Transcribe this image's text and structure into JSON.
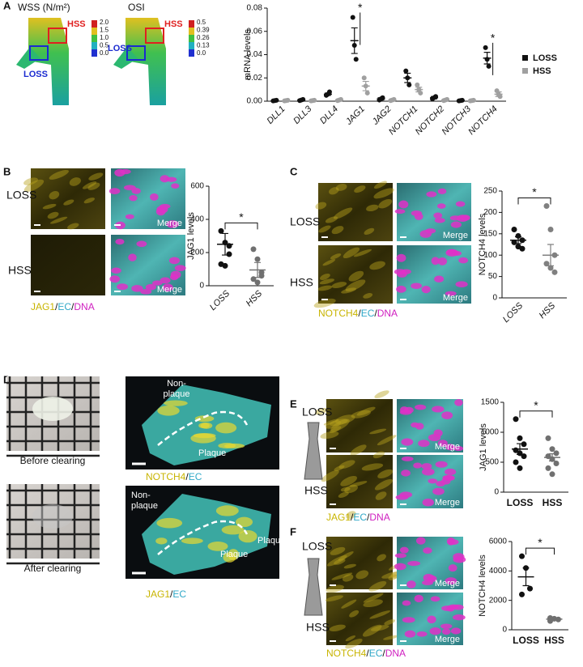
{
  "panels": {
    "a": {
      "letter": "A",
      "wss_title": "WSS (N/m²)",
      "osi_title": "OSI",
      "wss_scale": [
        "2.0",
        "1.5",
        "1.0",
        "0.5",
        "0.0"
      ],
      "osi_scale": [
        "0.5",
        "0.39",
        "0.26",
        "0.13",
        "0.0"
      ],
      "wss_labels": [
        "HSS",
        "LOSS"
      ],
      "osi_labels": [
        "HSS",
        "LOSS"
      ]
    },
    "b": {
      "letter": "B",
      "rows": [
        "LOSS",
        "HSS"
      ],
      "merge": [
        "Merge",
        "Merge"
      ],
      "stain": [
        "JAG1",
        "/",
        "EC",
        "/",
        "DNA"
      ]
    },
    "c": {
      "letter": "C",
      "rows": [
        "LOSS",
        "HSS"
      ],
      "merge": [
        "Merge",
        "Merge"
      ],
      "stain": [
        "NOTCH4",
        "/",
        "EC",
        "/",
        "DNA"
      ]
    },
    "d": {
      "letter": "D",
      "captions": [
        "Before clearing",
        "After clearing"
      ],
      "top_labels": [
        "Non-",
        "plaque",
        "Plaque"
      ],
      "top_stain": [
        "NOTCH4",
        "/",
        "EC"
      ],
      "bottom_labels": [
        "Non-",
        "plaque",
        "Plaqu",
        "Plaque"
      ],
      "bottom_stain": [
        "JAG1",
        "/",
        "EC"
      ]
    },
    "e": {
      "letter": "E",
      "rows": [
        "LOSS",
        "HSS"
      ],
      "merge": [
        "Merge",
        "Merge"
      ],
      "stain": [
        "JAG1",
        "/",
        "EC",
        "/",
        "DNA"
      ]
    },
    "f": {
      "letter": "F",
      "rows": [
        "LOSS",
        "HSS"
      ],
      "merge": [
        "Merge",
        "Merge"
      ],
      "stain": [
        "NOTCH4",
        "/",
        "EC",
        "/",
        "DNA"
      ]
    }
  },
  "chart_data": [
    {
      "type": "dot",
      "ylabel": "mRNA levels",
      "categories": [
        "DLL1",
        "DLL3",
        "DLL4",
        "JAG1",
        "JAG2",
        "NOTCH1",
        "NOTCH2",
        "NOTCH3",
        "NOTCH4"
      ],
      "ylim": [
        0,
        0.08
      ],
      "yticks": [
        {
          "value": 0,
          "label": "0.00"
        },
        {
          "value": 0.02,
          "label": "0.02"
        },
        {
          "value": 0.04,
          "label": "0.04"
        },
        {
          "value": 0.06,
          "label": "0.06"
        },
        {
          "value": 0.08,
          "label": "0.08"
        }
      ],
      "series": [
        {
          "name": "LOSS",
          "color": "#111111",
          "values": [
            0.0005,
            0.001,
            0.006,
            0.052,
            0.002,
            0.02,
            0.003,
            0.0005,
            0.037
          ],
          "errors": [
            0.0003,
            0.0005,
            0.001,
            0.011,
            0.001,
            0.004,
            0.001,
            0.0003,
            0.005
          ],
          "points": [
            [
              0.0003,
              0.0005,
              0.0008
            ],
            [
              0.0005,
              0.001,
              0.0015
            ],
            [
              0.005,
              0.006,
              0.008
            ],
            [
              0.072,
              0.048,
              0.036
            ],
            [
              0.001,
              0.002,
              0.003
            ],
            [
              0.026,
              0.02,
              0.014
            ],
            [
              0.002,
              0.003,
              0.004
            ],
            [
              0.0003,
              0.0005,
              0.0008
            ],
            [
              0.046,
              0.036,
              0.03
            ]
          ]
        },
        {
          "name": "HSS",
          "color": "#a0a0a0",
          "values": [
            0.0005,
            0.0005,
            0.001,
            0.013,
            0.001,
            0.01,
            0.001,
            0.0005,
            0.006
          ],
          "errors": [
            0.0003,
            0.0003,
            0.0005,
            0.004,
            0.0005,
            0.002,
            0.0005,
            0.0003,
            0.002
          ],
          "points": [
            [
              0.0003,
              0.0005,
              0.0008
            ],
            [
              0.0003,
              0.0005,
              0.0008
            ],
            [
              0.0005,
              0.001,
              0.0015
            ],
            [
              0.02,
              0.013,
              0.007
            ],
            [
              0.0005,
              0.001,
              0.0015
            ],
            [
              0.014,
              0.01,
              0.007
            ],
            [
              0.0005,
              0.001,
              0.0015
            ],
            [
              0.0003,
              0.0005,
              0.0008
            ],
            [
              0.009,
              0.006,
              0.004
            ]
          ]
        }
      ],
      "annotations": [
        {
          "text": "*",
          "category": "JAG1"
        },
        {
          "text": "*",
          "category": "NOTCH4"
        }
      ],
      "legend": "right"
    },
    {
      "type": "dot",
      "ylabel": "JAG1 levels",
      "categories": [
        "LOSS",
        "HSS"
      ],
      "ylim": [
        0,
        600
      ],
      "yticks": [
        0,
        200,
        400,
        600
      ],
      "colors": [
        "#111111",
        "#707070"
      ],
      "series": [
        {
          "values": [
            250,
            95
          ],
          "errors": [
            65,
            45
          ],
          "points": [
            [
              330,
              260,
              190,
              130,
              120,
              240
            ],
            [
              220,
              160,
              60,
              40,
              20,
              80
            ]
          ]
        }
      ],
      "annotations": [
        {
          "text": "*"
        }
      ]
    },
    {
      "type": "dot",
      "ylabel": "NOTCH4 levels",
      "categories": [
        "LOSS",
        "HSS"
      ],
      "ylim": [
        0,
        250
      ],
      "yticks": [
        0,
        50,
        100,
        150,
        200,
        250
      ],
      "colors": [
        "#111111",
        "#808080"
      ],
      "series": [
        {
          "values": [
            135,
            100
          ],
          "errors": [
            8,
            25
          ],
          "points": [
            [
              160,
              145,
              135,
              130,
              120,
              115
            ],
            [
              215,
              160,
              100,
              80,
              70,
              60
            ]
          ]
        }
      ],
      "annotations": [
        {
          "text": "*"
        }
      ]
    },
    {
      "type": "dot",
      "ylabel": "JAG1 levels",
      "categories": [
        "LOSS",
        "HSS"
      ],
      "ylim": [
        0,
        1500
      ],
      "yticks": [
        0,
        500,
        1000,
        1500
      ],
      "colors": [
        "#111111",
        "#707070"
      ],
      "series": [
        {
          "values": [
            720,
            580
          ],
          "errors": [
            90,
            60
          ],
          "points": [
            [
              1220,
              900,
              800,
              700,
              650,
              600,
              500,
              400
            ],
            [
              900,
              720,
              650,
              600,
              550,
              480,
              400,
              300
            ]
          ]
        }
      ],
      "annotations": [
        {
          "text": "*"
        }
      ]
    },
    {
      "type": "dot",
      "ylabel": "NOTCH4 levels",
      "categories": [
        "LOSS",
        "HSS"
      ],
      "ylim": [
        0,
        6000
      ],
      "yticks": [
        0,
        2000,
        4000,
        6000
      ],
      "colors": [
        "#111111",
        "#707070"
      ],
      "series": [
        {
          "values": [
            3600,
            720
          ],
          "errors": [
            600,
            50
          ],
          "points": [
            [
              5000,
              4200,
              2800,
              2400
            ],
            [
              800,
              750,
              700,
              600
            ]
          ]
        }
      ],
      "annotations": [
        {
          "text": "*"
        }
      ]
    }
  ]
}
